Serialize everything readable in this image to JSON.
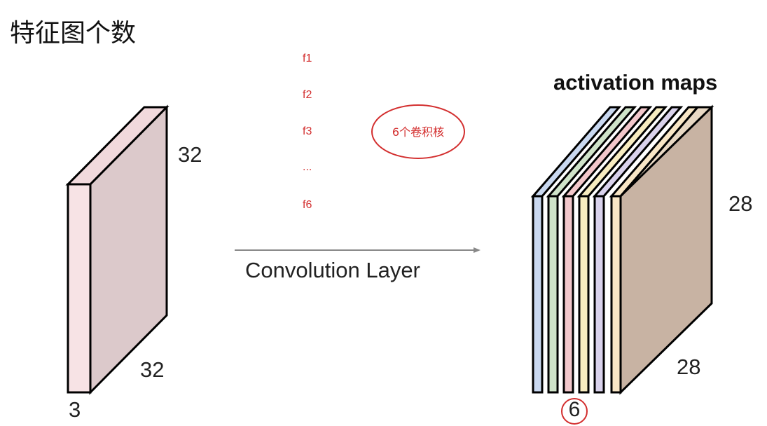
{
  "title": "特征图个数",
  "filters": [
    "f1",
    "f2",
    "f3",
    "...",
    "f6"
  ],
  "annotation": "6个卷积核",
  "input_volume": {
    "height": "32",
    "width": "32",
    "depth": "3"
  },
  "layer_label": "Convolution Layer",
  "output": {
    "title": "activation maps",
    "height": "28",
    "width": "28",
    "channels": "6"
  },
  "colors": {
    "annotation": "#d32f2f",
    "input_front": "#f7e3e5",
    "input_side": "#dcc9cb",
    "slice_colors": [
      "#c9d8f0",
      "#cfe3c9",
      "#f2c7cb",
      "#f7ecc0",
      "#d9d2ec",
      "#f8e6c6"
    ],
    "output_side": "#c8b3a3"
  }
}
